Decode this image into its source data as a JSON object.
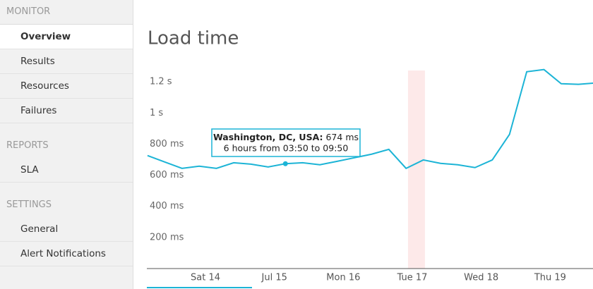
{
  "sidebar": {
    "sections": [
      {
        "title": "MONITOR",
        "items": [
          {
            "label": "Overview",
            "active": true
          },
          {
            "label": "Results",
            "active": false
          },
          {
            "label": "Resources",
            "active": false
          },
          {
            "label": "Failures",
            "active": false
          }
        ]
      },
      {
        "title": "REPORTS",
        "items": [
          {
            "label": "SLA",
            "active": false
          }
        ]
      },
      {
        "title": "SETTINGS",
        "items": [
          {
            "label": "General",
            "active": false
          },
          {
            "label": "Alert Notifications",
            "active": false
          }
        ]
      }
    ]
  },
  "chart_data": {
    "type": "line",
    "title": "Load time",
    "x": [
      -20.17,
      -14.17,
      -8.17,
      -2.17,
      3.83,
      9.83,
      15.83,
      21.83,
      27.83,
      33.83,
      39.83,
      45.83,
      51.83,
      57.83,
      63.83,
      69.83,
      75.83,
      81.83,
      87.83,
      93.83,
      99.83,
      105.83,
      111.83,
      117.83,
      123.83,
      129.83,
      135.83
    ],
    "series": [
      {
        "color": "#1cb4d6",
        "values": [
          726,
          685,
          644,
          658,
          644,
          680,
          671,
          653,
          674,
          680,
          667,
          689,
          712,
          735,
          766,
          644,
          698,
          676,
          667,
          649,
          698,
          862,
          1265,
          1279,
          1188,
          1184,
          1193
        ]
      }
    ],
    "xlim": [
      -20.4,
      134.9
    ],
    "xticks": [
      {
        "value": 0,
        "label": "Sat 14"
      },
      {
        "value": 24,
        "label": "Jul 15"
      },
      {
        "value": 48,
        "label": "Mon 16"
      },
      {
        "value": 72,
        "label": "Tue 17"
      },
      {
        "value": 96,
        "label": "Wed 18"
      },
      {
        "value": 120,
        "label": "Thu 19"
      }
    ],
    "ylim": [
      0,
      1350
    ],
    "yticks": [
      {
        "value": 200,
        "label": "200 ms"
      },
      {
        "value": 400,
        "label": "400 ms"
      },
      {
        "value": 600,
        "label": "600 ms"
      },
      {
        "value": 800,
        "label": "800 ms"
      },
      {
        "value": 1000,
        "label": "1 s"
      },
      {
        "value": 1200,
        "label": "1.2 s"
      }
    ],
    "plot_band": {
      "from": 70.5,
      "to": 76.4,
      "color": "#fde9e9"
    },
    "tooltip": {
      "title": "Washington, DC, USA:",
      "value_label": "674 ms",
      "text": "6 hours from 03:50 to 09:50",
      "point": 8
    }
  }
}
